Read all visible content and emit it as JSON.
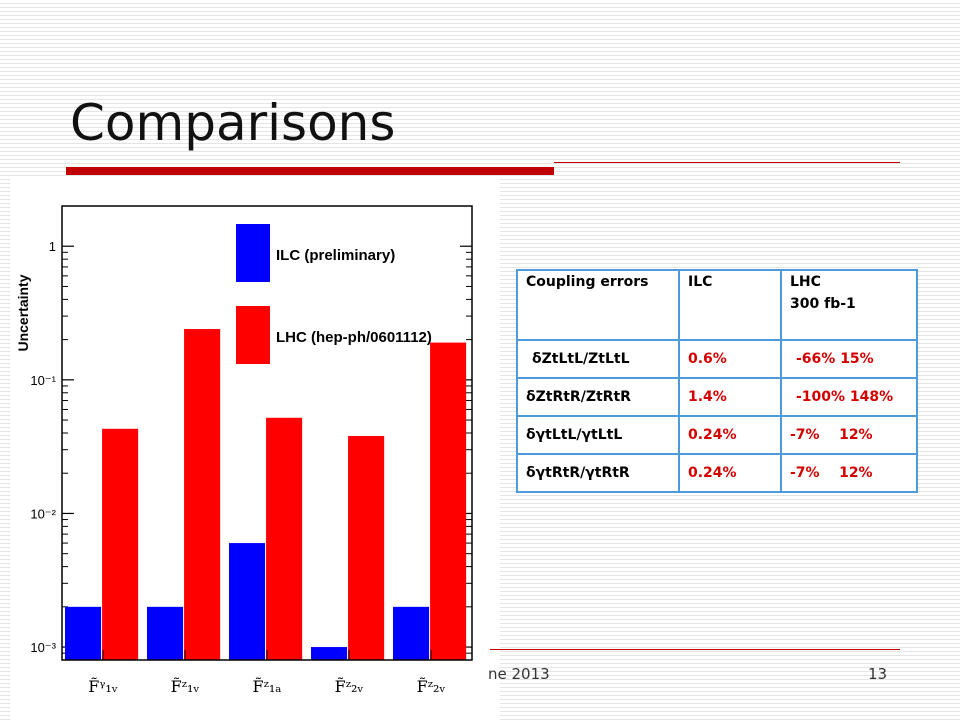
{
  "slide": {
    "title": "Comparisons",
    "footer_text": "ne 2013",
    "page_number": "13"
  },
  "table": {
    "header": [
      "Coupling errors",
      "ILC",
      "LHC"
    ],
    "header_sub": [
      "",
      "",
      "300 fb-1"
    ],
    "rows": [
      {
        "label": "δZtLtL/ZtLtL",
        "ilc": "0.6%",
        "lhc": "-66%  15%"
      },
      {
        "label": "δZtRtR/ZtRtR",
        "ilc": "1.4%",
        "lhc": "-100% 148%"
      },
      {
        "label": "δγtLtL/γtLtL",
        "ilc": "0.24%",
        "lhc": "-7%    12%"
      },
      {
        "label": "δγtRtR/γtRtR",
        "ilc": "0.24%",
        "lhc": "-7%    12%"
      }
    ]
  },
  "chart_data": {
    "type": "bar",
    "ylabel": "Uncertainty",
    "xlabel": "",
    "yscale": "log",
    "ylim": [
      0.0008,
      2.0
    ],
    "y_ticks": [
      {
        "value": 1,
        "label": "1"
      },
      {
        "value": 0.1,
        "label": "10⁻¹"
      },
      {
        "value": 0.01,
        "label": "10⁻²"
      },
      {
        "value": 0.001,
        "label": "10⁻³"
      }
    ],
    "categories": [
      "F̃ᵞ₁ᵥ",
      "F̃ᶻ₁ᵥ",
      "F̃ᶻ₁ₐ",
      "F̃ᶻ₂ᵥ",
      "F̃ᶻ₂ᵥ "
    ],
    "series": [
      {
        "name": "ILC (preliminary)",
        "color": "#0000ff",
        "values": [
          0.002,
          0.002,
          0.006,
          0.001,
          0.002
        ]
      },
      {
        "name": "LHC (hep-ph/0601112)",
        "color": "#ff0000",
        "values": [
          0.043,
          0.24,
          0.052,
          0.038,
          0.19
        ]
      }
    ],
    "legend_position": "top-right"
  }
}
